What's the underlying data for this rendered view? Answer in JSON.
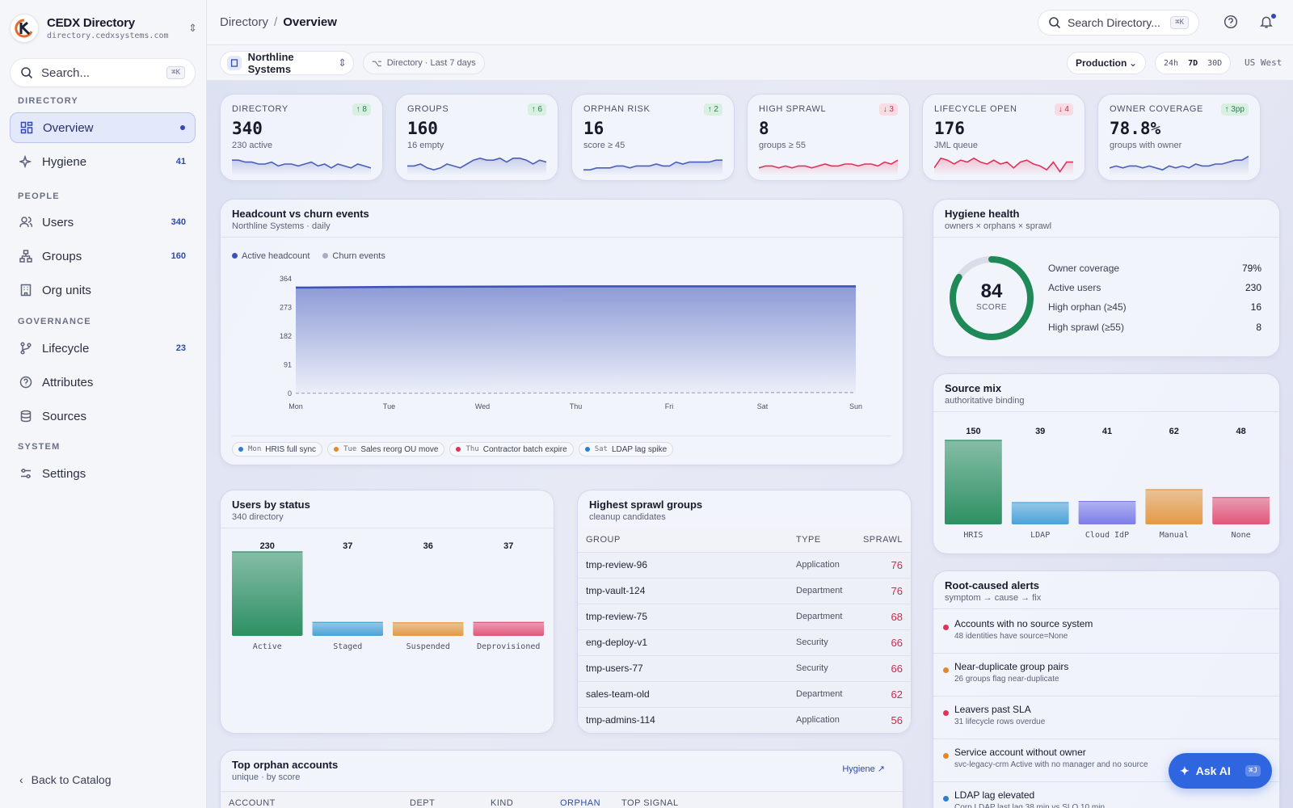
{
  "app": {
    "name": "CEDX Directory",
    "url": "directory.cedxsystems.com"
  },
  "sidebar": {
    "search_placeholder": "Search...",
    "search_shortcut": "⌘K",
    "sections": {
      "directory": "DIRECTORY",
      "people": "PEOPLE",
      "governance": "GOVERNANCE",
      "system": "SYSTEM"
    },
    "items": [
      {
        "label": "Overview",
        "count": ""
      },
      {
        "label": "Hygiene",
        "count": "41"
      },
      {
        "label": "Users",
        "count": "340"
      },
      {
        "label": "Groups",
        "count": "160"
      },
      {
        "label": "Org units",
        "count": ""
      },
      {
        "label": "Lifecycle",
        "count": "23"
      },
      {
        "label": "Attributes",
        "count": ""
      },
      {
        "label": "Sources",
        "count": ""
      },
      {
        "label": "Settings",
        "count": ""
      }
    ],
    "back_label": "Back to Catalog"
  },
  "topbar": {
    "breadcrumb": [
      "Directory",
      "Overview"
    ],
    "search_placeholder": "Search Directory...",
    "search_shortcut": "⌘K"
  },
  "filters": {
    "org": "Northline Systems",
    "scope": "Directory · Last 7 days",
    "environment": "Production",
    "ranges": [
      "24h",
      "7D",
      "30D"
    ],
    "active_range": "7D",
    "region": "US West"
  },
  "kpis": [
    {
      "label": "DIRECTORY",
      "value": "340",
      "sub": "230 active",
      "delta": "↑ 8",
      "dir": "up",
      "color": "#4a5fb8",
      "spark": [
        7,
        7,
        6,
        6,
        5,
        5,
        6,
        4,
        5,
        5,
        4,
        5,
        6,
        4,
        5,
        3,
        5,
        4,
        3,
        5,
        4,
        3
      ]
    },
    {
      "label": "GROUPS",
      "value": "160",
      "sub": "16 empty",
      "delta": "↑ 6",
      "dir": "up",
      "color": "#4a5fb8",
      "spark": [
        4,
        4,
        5,
        3,
        2,
        3,
        5,
        4,
        3,
        5,
        7,
        8,
        7,
        7,
        8,
        6,
        8,
        8,
        7,
        5,
        7,
        6
      ]
    },
    {
      "label": "ORPHAN RISK",
      "value": "16",
      "sub": "score ≥ 45",
      "delta": "↑ 2",
      "dir": "up",
      "color": "#4a5fb8",
      "spark": [
        2,
        2,
        3,
        3,
        3,
        4,
        4,
        3,
        4,
        4,
        4,
        5,
        4,
        4,
        6,
        5,
        6,
        6,
        6,
        6,
        7,
        7
      ]
    },
    {
      "label": "HIGH SPRAWL",
      "value": "8",
      "sub": "groups ≥ 55",
      "delta": "↓ 3",
      "dir": "dn",
      "color": "#e0325a",
      "spark": [
        3,
        4,
        4,
        3,
        4,
        3,
        4,
        4,
        3,
        4,
        5,
        4,
        4,
        5,
        5,
        4,
        5,
        5,
        4,
        6,
        5,
        7
      ]
    },
    {
      "label": "LIFECYCLE OPEN",
      "value": "176",
      "sub": "JML queue",
      "delta": "↓ 4",
      "dir": "dn",
      "color": "#e0325a",
      "spark": [
        3,
        8,
        7,
        5,
        7,
        6,
        8,
        6,
        5,
        7,
        5,
        6,
        3,
        6,
        7,
        5,
        4,
        2,
        6,
        1,
        6,
        6
      ]
    },
    {
      "label": "OWNER COVERAGE",
      "value": "78.8%",
      "sub": "groups with owner",
      "delta": "↑ 3pp",
      "dir": "up",
      "color": "#4a5fb8",
      "spark": [
        3,
        4,
        3,
        4,
        4,
        3,
        4,
        3,
        2,
        4,
        3,
        4,
        3,
        5,
        4,
        4,
        5,
        5,
        6,
        7,
        7,
        9
      ]
    }
  ],
  "headcount": {
    "title": "Headcount vs churn events",
    "subtitle": "Northline Systems · daily",
    "legend": [
      "Active headcount",
      "Churn events"
    ],
    "annotations": [
      {
        "day": "Mon",
        "text": "HRIS full sync",
        "color": "#2a7fd1"
      },
      {
        "day": "Tue",
        "text": "Sales reorg OU move",
        "color": "#e0882a"
      },
      {
        "day": "Thu",
        "text": "Contractor batch expire",
        "color": "#e0325a"
      },
      {
        "day": "Sat",
        "text": "LDAP lag spike",
        "color": "#2a7fd1"
      }
    ]
  },
  "chart_data": [
    {
      "type": "area",
      "title": "Headcount vs churn events",
      "x": [
        "Mon",
        "Tue",
        "Wed",
        "Thu",
        "Fri",
        "Sat",
        "Sun"
      ],
      "yticks": [
        0,
        91,
        182,
        273,
        364
      ],
      "ylim": [
        0,
        364
      ],
      "series": [
        {
          "name": "Active headcount",
          "values": [
            336,
            338,
            339,
            340,
            340,
            340,
            340
          ]
        },
        {
          "name": "Churn events",
          "values": [
            1,
            1,
            1,
            2,
            2,
            3,
            3
          ]
        }
      ]
    },
    {
      "type": "bar",
      "title": "Users by status",
      "categories": [
        "Active",
        "Staged",
        "Suspended",
        "Deprovisioned"
      ],
      "values": [
        230,
        37,
        36,
        37
      ],
      "colors": [
        "#2d9062",
        "#4aa2d8",
        "#e39a45",
        "#e2567a"
      ]
    },
    {
      "type": "bar",
      "title": "Source mix",
      "categories": [
        "HRIS",
        "LDAP",
        "Cloud IdP",
        "Manual",
        "None"
      ],
      "values": [
        150,
        39,
        41,
        62,
        48
      ],
      "colors": [
        "#2d9062",
        "#4aa2d8",
        "#7c7de8",
        "#e39a45",
        "#e2567a"
      ]
    }
  ],
  "hygiene": {
    "title": "Hygiene health",
    "subtitle": "owners × orphans × sprawl",
    "score": "84",
    "score_label": "SCORE",
    "score_value": 0.84,
    "rows": [
      {
        "label": "Owner coverage",
        "value": "79%"
      },
      {
        "label": "Active users",
        "value": "230"
      },
      {
        "label": "High orphan (≥45)",
        "value": "16"
      },
      {
        "label": "High sprawl (≥55)",
        "value": "8"
      }
    ]
  },
  "source_mix": {
    "title": "Source mix",
    "subtitle": "authoritative binding"
  },
  "users_status": {
    "title": "Users by status",
    "subtitle": "340 directory"
  },
  "sprawl": {
    "title": "Highest sprawl groups",
    "subtitle": "cleanup candidates",
    "columns": [
      "GROUP",
      "TYPE",
      "SPRAWL"
    ],
    "rows": [
      [
        "tmp-review-96",
        "Application",
        "76"
      ],
      [
        "tmp-vault-124",
        "Department",
        "76"
      ],
      [
        "tmp-review-75",
        "Department",
        "68"
      ],
      [
        "eng-deploy-v1",
        "Security",
        "66"
      ],
      [
        "tmp-users-77",
        "Security",
        "66"
      ],
      [
        "sales-team-old",
        "Department",
        "62"
      ],
      [
        "tmp-admins-114",
        "Application",
        "56"
      ]
    ]
  },
  "alerts": {
    "title": "Root-caused alerts",
    "subtitle": "symptom → cause → fix",
    "items": [
      {
        "title": "Accounts with no source system",
        "sub": "48 identities have source=None",
        "color": "#e0325a"
      },
      {
        "title": "Near-duplicate group pairs",
        "sub": "26 groups flag near-duplicate",
        "color": "#e0882a"
      },
      {
        "title": "Leavers past SLA",
        "sub": "31 lifecycle rows overdue",
        "color": "#e0325a"
      },
      {
        "title": "Service account without owner",
        "sub": "svc-legacy-crm Active with no manager and no source",
        "color": "#e0882a"
      },
      {
        "title": "LDAP lag elevated",
        "sub": "Corp LDAP last lag 38 min vs SLO 10 min",
        "color": "#2a7fd1"
      }
    ]
  },
  "orphans": {
    "title": "Top orphan accounts",
    "subtitle": "unique · by score",
    "link": "Hygiene",
    "columns": [
      "ACCOUNT",
      "DEPT",
      "KIND",
      "ORPHAN",
      "TOP SIGNAL"
    ]
  },
  "ask_ai": {
    "label": "Ask AI",
    "shortcut": "⌘J"
  }
}
